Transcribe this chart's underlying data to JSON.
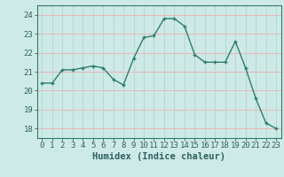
{
  "x": [
    0,
    1,
    2,
    3,
    4,
    5,
    6,
    7,
    8,
    9,
    10,
    11,
    12,
    13,
    14,
    15,
    16,
    17,
    18,
    19,
    20,
    21,
    22,
    23
  ],
  "y": [
    20.4,
    20.4,
    21.1,
    21.1,
    21.2,
    21.3,
    21.2,
    20.6,
    20.3,
    21.7,
    22.8,
    22.9,
    23.8,
    23.8,
    23.4,
    21.9,
    21.5,
    21.5,
    21.5,
    22.6,
    21.2,
    19.6,
    18.3,
    18.0
  ],
  "line_color": "#2d7d6e",
  "marker_color": "#2d7d6e",
  "bg_color": "#ceeae7",
  "grid_h_color": "#e8b8b8",
  "grid_v_color": "#b8d8d5",
  "xlabel": "Humidex (Indice chaleur)",
  "xlim": [
    -0.5,
    23.5
  ],
  "ylim": [
    17.5,
    24.5
  ],
  "yticks": [
    18,
    19,
    20,
    21,
    22,
    23,
    24
  ],
  "xticks": [
    0,
    1,
    2,
    3,
    4,
    5,
    6,
    7,
    8,
    9,
    10,
    11,
    12,
    13,
    14,
    15,
    16,
    17,
    18,
    19,
    20,
    21,
    22,
    23
  ],
  "tick_fontsize": 6.5,
  "xlabel_fontsize": 7.5,
  "marker_size": 3.5,
  "line_width": 1.0
}
